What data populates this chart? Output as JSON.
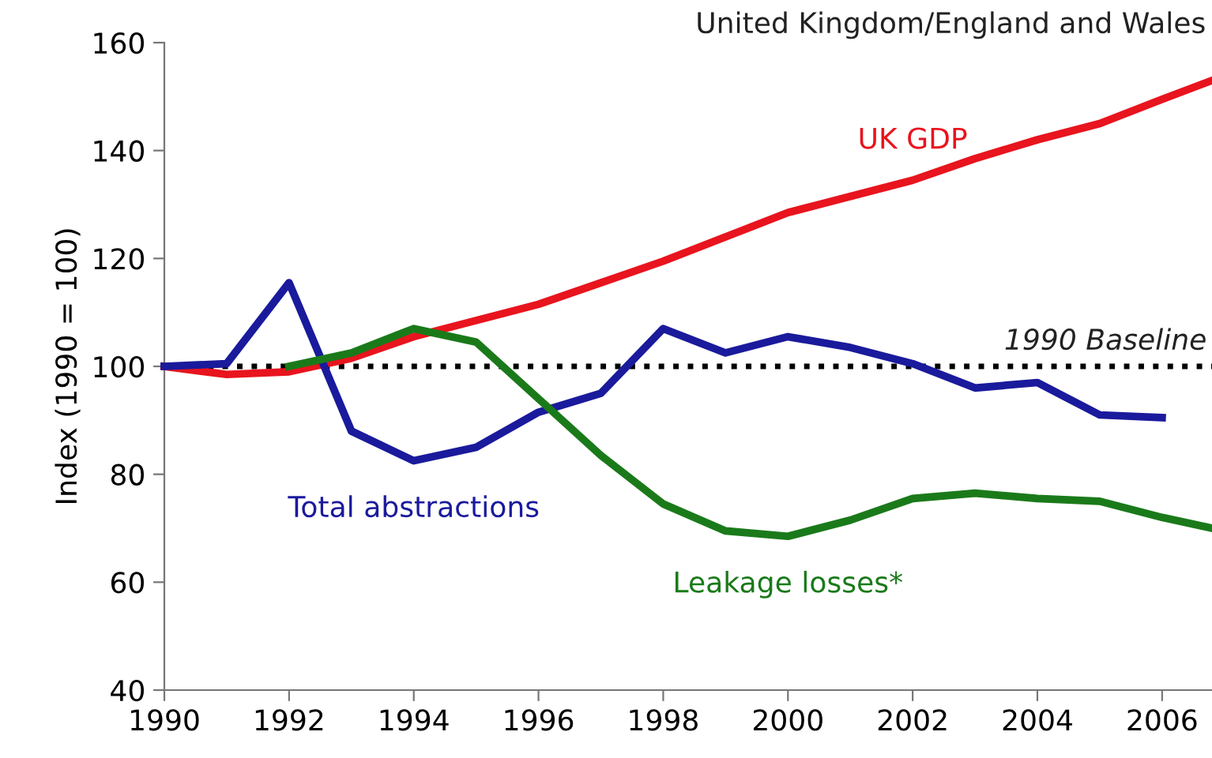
{
  "chart_data": {
    "type": "line",
    "title": "United Kingdom/England and Wales",
    "ylabel": "Index (1990 = 100)",
    "series": [
      {
        "name": "UK GDP",
        "color": "#e8141e",
        "x": [
          1990,
          1991,
          1992,
          1993,
          1994,
          1995,
          1996,
          1997,
          1998,
          1999,
          2000,
          2001,
          2002,
          2003,
          2004,
          2005,
          2006,
          2006.8
        ],
        "values": [
          100,
          98.5,
          99,
          101.5,
          105.5,
          108.5,
          111.5,
          115.5,
          119.5,
          124,
          128.5,
          131.5,
          134.5,
          138.5,
          142,
          145,
          149.5,
          153
        ]
      },
      {
        "name": "Total abstractions",
        "color": "#1a1a9c",
        "x": [
          1990,
          1991,
          1992,
          1993,
          1994,
          1995,
          1996,
          1997,
          1998,
          1999,
          2000,
          2001,
          2002,
          2003,
          2004,
          2005,
          2006
        ],
        "values": [
          100,
          100.5,
          115.5,
          88,
          82.5,
          85,
          91.5,
          95,
          107,
          102.5,
          105.5,
          103.5,
          100.5,
          96,
          97,
          91,
          90.5
        ]
      },
      {
        "name": "Leakage losses*",
        "color": "#1a7a1a",
        "x": [
          1992,
          1993,
          1994,
          1995,
          1996,
          1997,
          1998,
          1999,
          2000,
          2001,
          2002,
          2003,
          2004,
          2005,
          2006,
          2006.8
        ],
        "values": [
          100,
          102.5,
          107,
          104.5,
          94,
          83.5,
          74.5,
          69.5,
          68.5,
          71.5,
          75.5,
          76.5,
          75.5,
          75,
          72,
          70
        ]
      }
    ],
    "ref_lines": [
      {
        "axis": "y",
        "value": 100,
        "label": "1990 Baseline",
        "color": "#000000",
        "line_style": "dotted"
      }
    ],
    "xlim": [
      1990,
      2006.8
    ],
    "ylim": [
      40,
      160
    ],
    "xticks": [
      1990,
      1992,
      1994,
      1996,
      1998,
      2000,
      2002,
      2004,
      2006
    ],
    "yticks": [
      40,
      60,
      80,
      100,
      120,
      140,
      160
    ],
    "grid": false,
    "legend": false,
    "marker": "none",
    "line_style": "solid"
  }
}
